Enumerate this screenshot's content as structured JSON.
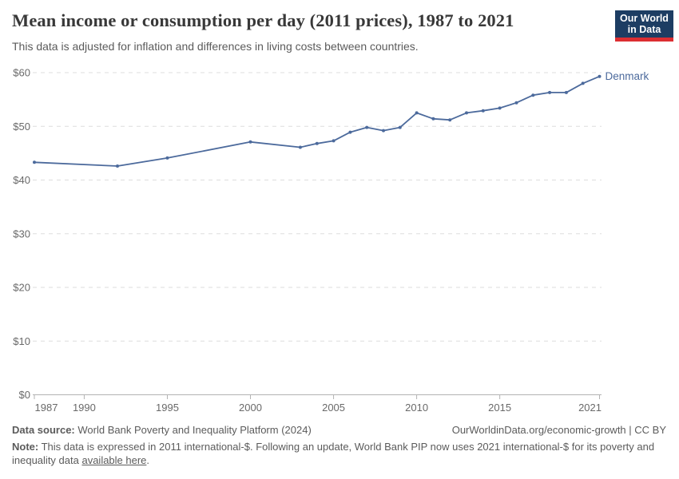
{
  "header": {
    "title": "Mean income or consumption per day (2011 prices), 1987 to 2021",
    "subtitle": "This data is adjusted for inflation and differences in living costs between countries.",
    "logo": {
      "line1": "Our World",
      "line2": "in Data",
      "bg_color": "#1d3d63",
      "bar_color": "#dc2e32"
    }
  },
  "chart_data": {
    "type": "line",
    "title": "Mean income or consumption per day (2011 prices), 1987 to 2021",
    "xlabel": "",
    "ylabel": "",
    "xlim": [
      1987,
      2021
    ],
    "ylim": [
      0,
      60
    ],
    "x_ticks": [
      1987,
      1990,
      1995,
      2000,
      2005,
      2010,
      2015,
      2021
    ],
    "y_ticks": [
      0,
      10,
      20,
      30,
      40,
      50,
      60
    ],
    "y_tick_prefix": "$",
    "grid": true,
    "legend_position": "end-of-line-label",
    "series": [
      {
        "name": "Denmark",
        "color": "#4c6a9c",
        "points": [
          [
            1987,
            43.3
          ],
          [
            1992,
            42.6
          ],
          [
            1995,
            44.1
          ],
          [
            2000,
            47.1
          ],
          [
            2003,
            46.1
          ],
          [
            2004,
            46.8
          ],
          [
            2005,
            47.3
          ],
          [
            2006,
            48.9
          ],
          [
            2007,
            49.8
          ],
          [
            2008,
            49.2
          ],
          [
            2009,
            49.8
          ],
          [
            2010,
            52.5
          ],
          [
            2011,
            51.4
          ],
          [
            2012,
            51.2
          ],
          [
            2013,
            52.5
          ],
          [
            2014,
            52.9
          ],
          [
            2015,
            53.4
          ],
          [
            2016,
            54.4
          ],
          [
            2017,
            55.8
          ],
          [
            2018,
            56.3
          ],
          [
            2019,
            56.3
          ],
          [
            2020,
            58.0
          ],
          [
            2021,
            59.3
          ]
        ]
      }
    ],
    "colors": {
      "grid_line": "#dddddd",
      "axis_line": "#b3b3b3",
      "tick_label": "#696969"
    }
  },
  "footer": {
    "datasource_label": "Data source:",
    "datasource_value": "World Bank Poverty and Inequality Platform (2024)",
    "credit": "OurWorldinData.org/economic-growth | CC BY",
    "note_label": "Note:",
    "note_before_link": "This data is expressed in 2011 international-$. Following an update, World Bank PIP now uses 2021 international-$ for its poverty and inequality data",
    "note_link": "available here",
    "note_after_link": "."
  }
}
